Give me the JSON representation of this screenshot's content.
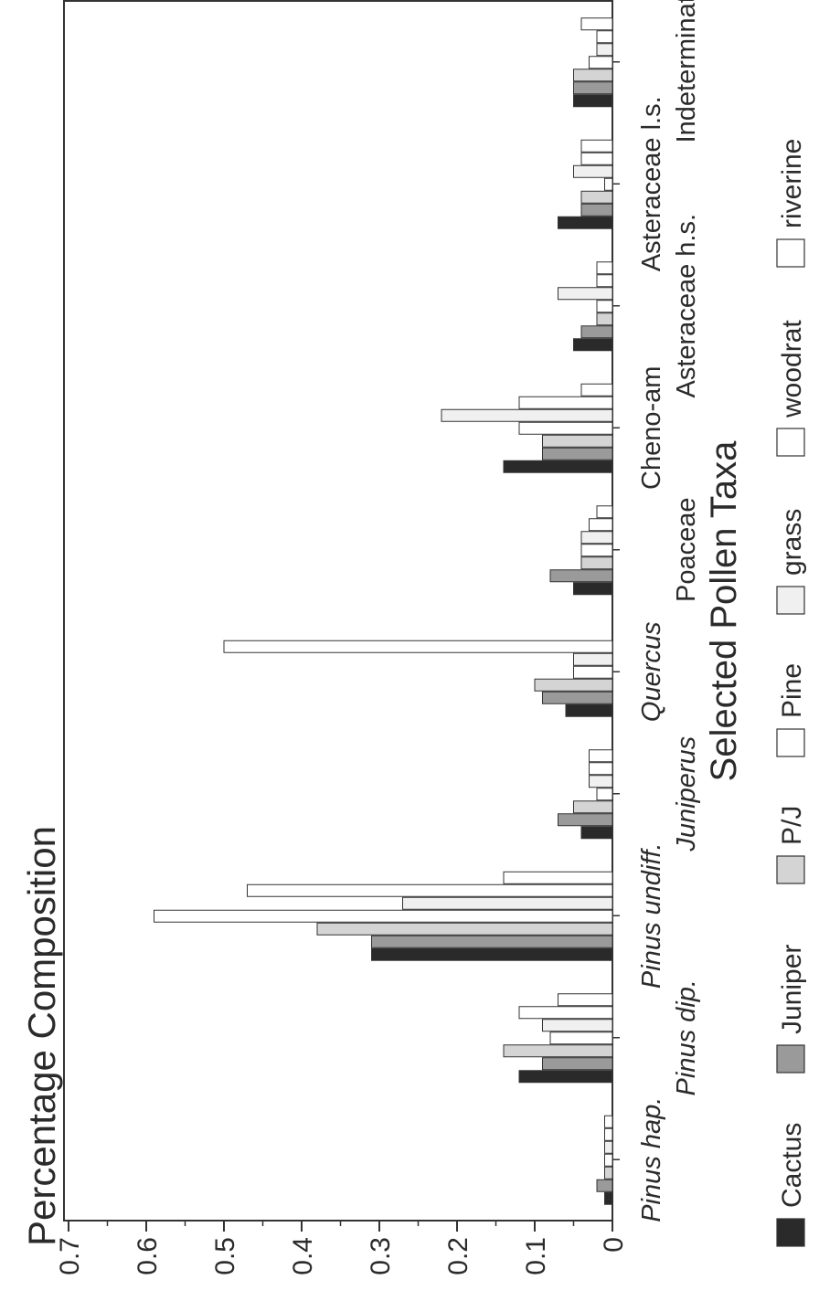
{
  "chart_data": {
    "type": "bar",
    "orientation": "rotated-90",
    "title": "Percentage Composition",
    "xlabel": "Selected Pollen Taxa",
    "ylabel": "",
    "ylim": [
      0,
      0.7
    ],
    "yticks": [
      "0",
      "0.1",
      "0.2",
      "0.3",
      "0.4",
      "0.5",
      "0.6",
      "0.7"
    ],
    "grid": false,
    "legend_position": "bottom",
    "categories": [
      {
        "label": "Pinus hap.",
        "italic": true
      },
      {
        "label": "Pinus dip.",
        "italic": true
      },
      {
        "label": "Pinus undiff.",
        "italic": true
      },
      {
        "label": "Juniperus",
        "italic": true
      },
      {
        "label": "Quercus",
        "italic": true
      },
      {
        "label": "Poaceae",
        "italic": false
      },
      {
        "label": "Cheno-am",
        "italic": false
      },
      {
        "label": "Asteraceae h.s.",
        "italic": false
      },
      {
        "label": "Asteraceae l.s.",
        "italic": false
      },
      {
        "label": "Indeterminate",
        "italic": false
      }
    ],
    "series": [
      {
        "name": "Cactus",
        "fill": "#2a2a2a",
        "values": [
          0.01,
          0.12,
          0.31,
          0.04,
          0.06,
          0.05,
          0.14,
          0.05,
          0.07,
          0.05
        ]
      },
      {
        "name": "Juniper",
        "fill": "#9a9a9a",
        "values": [
          0.02,
          0.09,
          0.31,
          0.07,
          0.09,
          0.08,
          0.09,
          0.04,
          0.04,
          0.05
        ]
      },
      {
        "name": "P/J",
        "fill": "#d4d4d4",
        "values": [
          0.01,
          0.14,
          0.38,
          0.05,
          0.1,
          0.04,
          0.09,
          0.02,
          0.04,
          0.05
        ]
      },
      {
        "name": "Pine",
        "fill": "#ffffff",
        "values": [
          0.01,
          0.08,
          0.59,
          0.02,
          0.05,
          0.04,
          0.12,
          0.02,
          0.01,
          0.03
        ]
      },
      {
        "name": "grass",
        "fill": "#f0f0f0",
        "values": [
          0.01,
          0.09,
          0.27,
          0.03,
          0.05,
          0.04,
          0.22,
          0.07,
          0.05,
          0.02
        ]
      },
      {
        "name": "woodrat",
        "fill": "#ffffff",
        "values": [
          0.01,
          0.12,
          0.47,
          0.03,
          0.5,
          0.03,
          0.12,
          0.02,
          0.04,
          0.02
        ]
      },
      {
        "name": "riverine",
        "fill": "#ffffff",
        "values": [
          0.01,
          0.07,
          0.14,
          0.03,
          0.0,
          0.02,
          0.04,
          0.02,
          0.04,
          0.04
        ]
      }
    ]
  }
}
